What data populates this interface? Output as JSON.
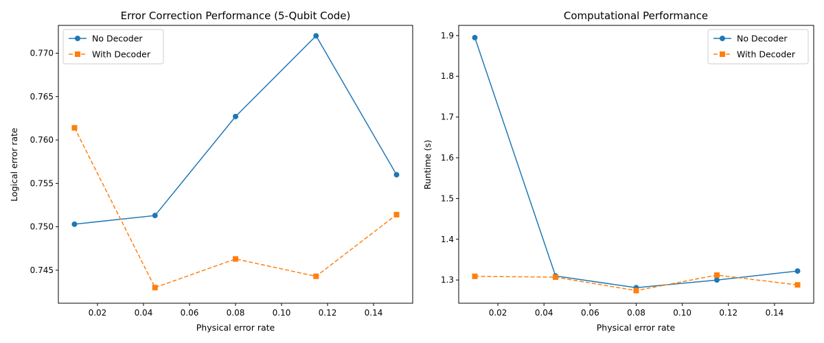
{
  "chart_data": [
    {
      "type": "line",
      "title": "Error Correction Performance (5-Qubit Code)",
      "xlabel": "Physical error rate",
      "ylabel": "Logical error rate",
      "xlim": [
        0.003,
        0.157
      ],
      "ylim": [
        0.7412,
        0.7732
      ],
      "xticks": [
        0.02,
        0.04,
        0.06,
        0.08,
        0.1,
        0.12,
        0.14
      ],
      "xtick_labels": [
        "0.02",
        "0.04",
        "0.06",
        "0.08",
        "0.10",
        "0.12",
        "0.14"
      ],
      "yticks": [
        0.745,
        0.75,
        0.755,
        0.76,
        0.765,
        0.77
      ],
      "ytick_labels": [
        "0.745",
        "0.750",
        "0.755",
        "0.760",
        "0.765",
        "0.770"
      ],
      "legend_position": "top-left",
      "grid": false,
      "series": [
        {
          "name": "No Decoder",
          "color": "#1f77b4",
          "style": "solid",
          "marker": "circle",
          "x": [
            0.01,
            0.045,
            0.08,
            0.115,
            0.15
          ],
          "y": [
            0.7503,
            0.7513,
            0.7627,
            0.772,
            0.756
          ]
        },
        {
          "name": "With Decoder",
          "color": "#ff7f0e",
          "style": "dashed",
          "marker": "square",
          "x": [
            0.01,
            0.045,
            0.08,
            0.115,
            0.15
          ],
          "y": [
            0.7614,
            0.743,
            0.7463,
            0.7443,
            0.7514
          ]
        }
      ]
    },
    {
      "type": "line",
      "title": "Computational Performance",
      "xlabel": "Physical error rate",
      "ylabel": "Runtime (s)",
      "xlim": [
        0.003,
        0.157
      ],
      "ylim": [
        1.243,
        1.925
      ],
      "xticks": [
        0.02,
        0.04,
        0.06,
        0.08,
        0.1,
        0.12,
        0.14
      ],
      "xtick_labels": [
        "0.02",
        "0.04",
        "0.06",
        "0.08",
        "0.10",
        "0.12",
        "0.14"
      ],
      "yticks": [
        1.3,
        1.4,
        1.5,
        1.6,
        1.7,
        1.8,
        1.9
      ],
      "ytick_labels": [
        "1.3",
        "1.4",
        "1.5",
        "1.6",
        "1.7",
        "1.8",
        "1.9"
      ],
      "legend_position": "top-right",
      "grid": false,
      "series": [
        {
          "name": "No Decoder",
          "color": "#1f77b4",
          "style": "solid",
          "marker": "circle",
          "x": [
            0.01,
            0.045,
            0.08,
            0.115,
            0.15
          ],
          "y": [
            1.895,
            1.31,
            1.281,
            1.3,
            1.322
          ]
        },
        {
          "name": "With Decoder",
          "color": "#ff7f0e",
          "style": "dashed",
          "marker": "square",
          "x": [
            0.01,
            0.045,
            0.08,
            0.115,
            0.15
          ],
          "y": [
            1.309,
            1.307,
            1.274,
            1.312,
            1.288
          ]
        }
      ]
    }
  ]
}
